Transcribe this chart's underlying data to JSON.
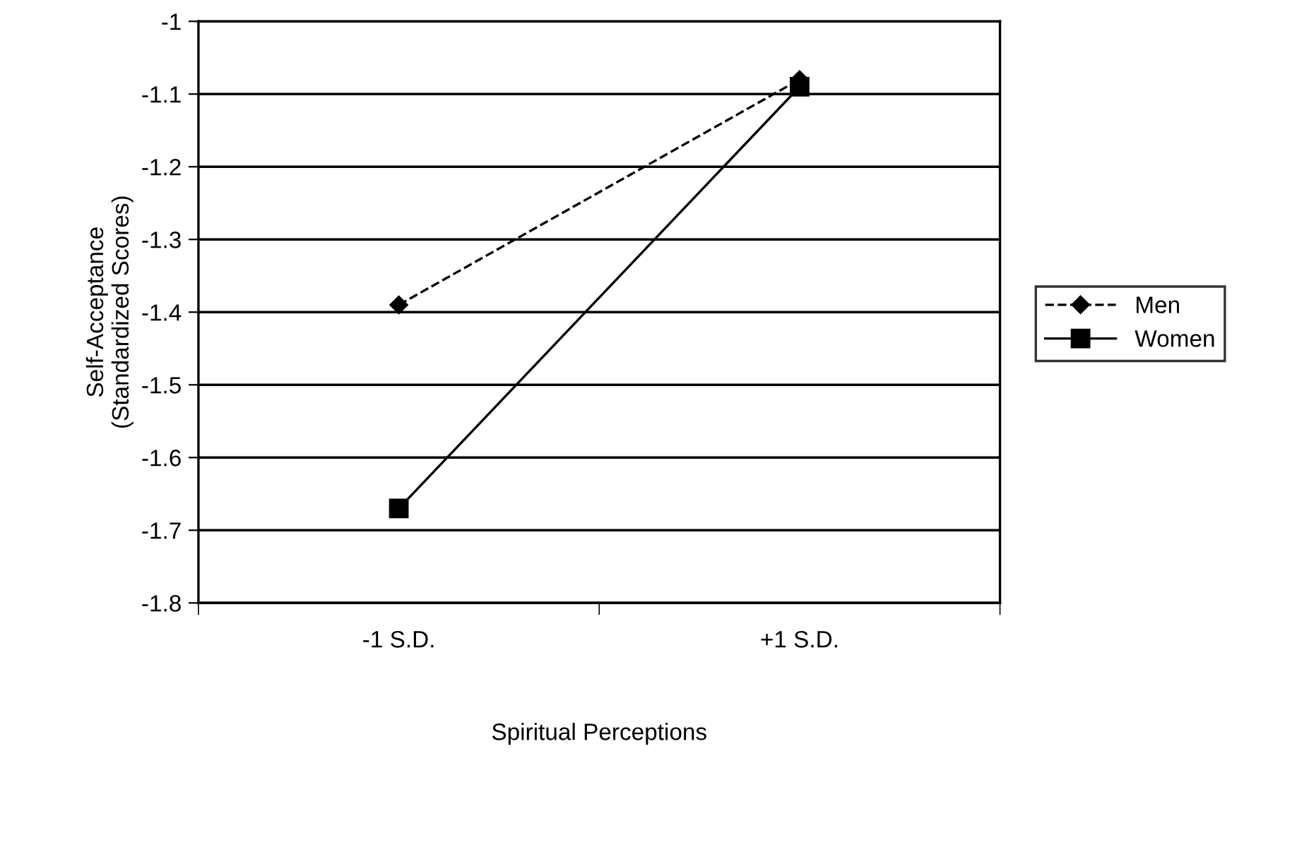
{
  "chart_data": {
    "type": "line",
    "xlabel": "Spiritual Perceptions",
    "ylabel": "Self-Acceptance\n(Standardized Scores)",
    "categories": [
      "-1 S.D.",
      "+1 S.D."
    ],
    "series": [
      {
        "name": "Men",
        "color": "#000000",
        "values": [
          -1.39,
          -1.08
        ],
        "marker": "diamond",
        "line_style": "dashed"
      },
      {
        "name": "Women",
        "color": "#000000",
        "values": [
          -1.67,
          -1.09
        ],
        "marker": "square",
        "line_style": "solid"
      }
    ],
    "ylim": [
      -1.8,
      -1
    ],
    "yticks": [
      -1.8,
      -1.7,
      -1.6,
      -1.5,
      -1.4,
      -1.3,
      -1.2,
      -1.1,
      -1
    ],
    "grid": "y",
    "legend": "right"
  }
}
